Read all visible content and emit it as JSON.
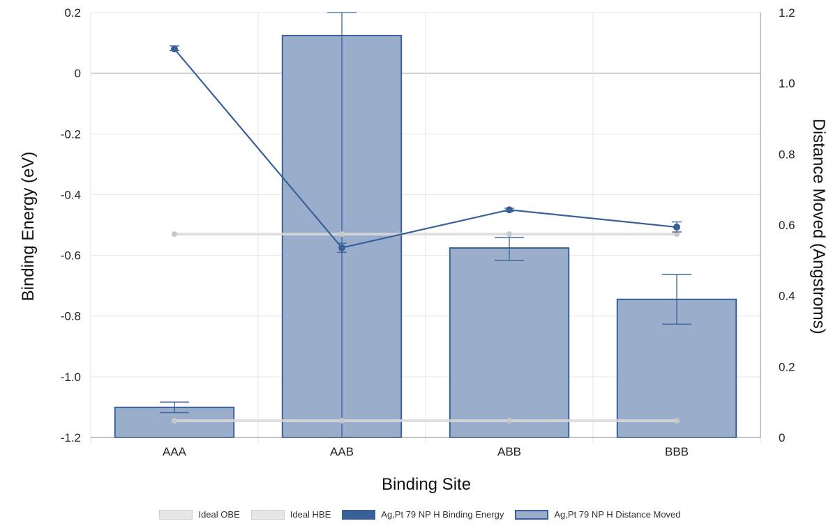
{
  "chart_data": {
    "type": "bar",
    "categories": [
      "AAA",
      "AAB",
      "ABB",
      "BBB"
    ],
    "xlabel": "Binding Site",
    "ylabel_left": "Binding Energy (eV)",
    "ylabel_right": "Distance Moved (Angstroms)",
    "ylim_left": [
      -1.2,
      0.2
    ],
    "yticks_left": [
      "0.2",
      "0",
      "-0.2",
      "-0.4",
      "-0.6",
      "-0.8",
      "-1.0",
      "-1.2"
    ],
    "ylim_right": [
      0,
      1.2
    ],
    "yticks_right": [
      "1.2",
      "1.0",
      "0.8",
      "0.6",
      "0.4",
      "0.2",
      "0"
    ],
    "grid": true,
    "legend_position": "bottom",
    "series": [
      {
        "name": "Ideal OBE",
        "kind": "line",
        "axis": "left",
        "color": "#d9d9d9",
        "values": [
          -0.53,
          -0.53,
          -0.53,
          -0.53
        ]
      },
      {
        "name": "Ideal HBE",
        "kind": "line",
        "axis": "left",
        "color": "#d9d9d9",
        "values": [
          -1.145,
          -1.145,
          -1.145,
          -1.145
        ]
      },
      {
        "name": "Ag,Pt 79 NP H Binding Energy",
        "kind": "line",
        "axis": "left",
        "color": "#3a6098",
        "values": [
          0.08,
          -0.575,
          -0.45,
          -0.507
        ],
        "error_low": [
          0.075,
          -0.59,
          -0.455,
          -0.523
        ],
        "error_high": [
          0.09,
          -0.56,
          -0.445,
          -0.49
        ]
      },
      {
        "name": "Ag,Pt 79 NP H Distance Moved",
        "kind": "bar",
        "axis": "right",
        "color": "#9aaecc",
        "edge_color": "#3a6098",
        "values": [
          0.085,
          1.135,
          0.535,
          0.39
        ],
        "error_low": [
          0.07,
          0.0,
          0.5,
          0.32
        ],
        "error_high": [
          0.1,
          1.22,
          0.565,
          0.46
        ]
      }
    ]
  }
}
